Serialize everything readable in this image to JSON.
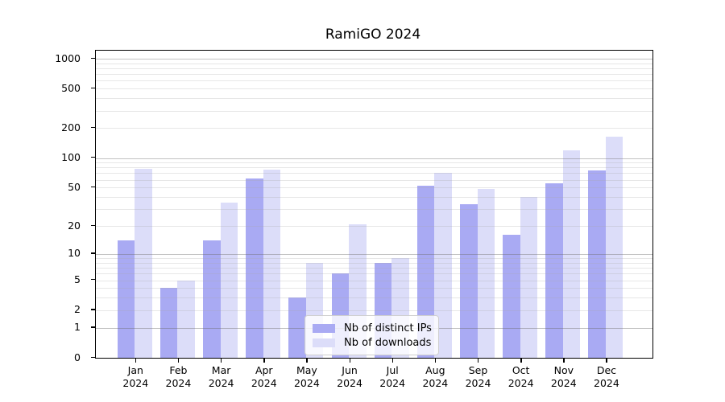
{
  "title": "RamiGO 2024",
  "legend": {
    "items": [
      {
        "label": "Nb of distinct IPs",
        "color": "#a9aaf3"
      },
      {
        "label": "Nb of downloads",
        "color": "#dcddf9"
      }
    ]
  },
  "axes": {
    "y_tick_labels": [
      "0",
      "1",
      "2",
      "5",
      "10",
      "20",
      "50",
      "100",
      "200",
      "500",
      "1000"
    ],
    "x_year": "2024",
    "x_months": [
      "Jan",
      "Feb",
      "Mar",
      "Apr",
      "May",
      "Jun",
      "Jul",
      "Aug",
      "Sep",
      "Oct",
      "Nov",
      "Dec"
    ]
  },
  "chart_data": {
    "type": "bar",
    "title": "RamiGO 2024",
    "categories": [
      "Jan 2024",
      "Feb 2024",
      "Mar 2024",
      "Apr 2024",
      "May 2024",
      "Jun 2024",
      "Jul 2024",
      "Aug 2024",
      "Sep 2024",
      "Oct 2024",
      "Nov 2024",
      "Dec 2024"
    ],
    "series": [
      {
        "name": "Nb of distinct IPs",
        "color": "#a9aaf3",
        "values": [
          14,
          4,
          14,
          62,
          3,
          6,
          8,
          52,
          34,
          16,
          55,
          75
        ]
      },
      {
        "name": "Nb of downloads",
        "color": "#dcddf9",
        "values": [
          78,
          5,
          35,
          76,
          8,
          21,
          9,
          71,
          48,
          40,
          120,
          165
        ]
      }
    ],
    "xlabel": "",
    "ylabel": "",
    "y_scale": "symlog-log1p",
    "y_ticks": [
      0,
      1,
      2,
      5,
      10,
      20,
      50,
      100,
      200,
      500,
      1000
    ],
    "ylim": [
      0,
      1200
    ],
    "grid": "horizontal major and minor, drawn over bars",
    "legend_position": "inside lower center"
  }
}
